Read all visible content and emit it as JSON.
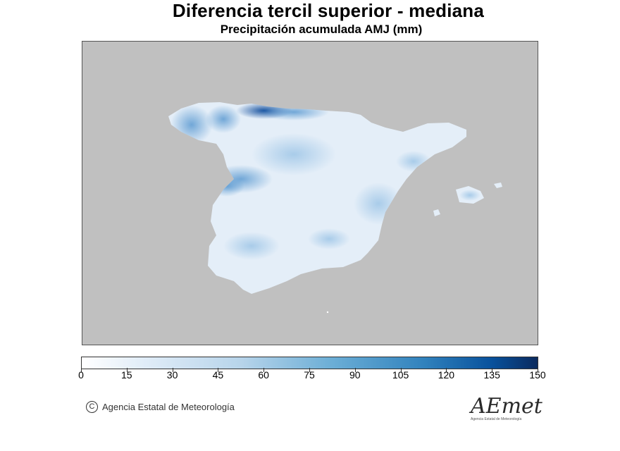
{
  "header": {
    "title": "Diferencia tercil superior - mediana",
    "subtitle": "Precipitación acumulada AMJ (mm)"
  },
  "map": {
    "region": "Península Ibérica y Baleares",
    "background_color": "#c0c0c0",
    "land_base_color": "#e4eef8",
    "highlight_color": "#1f5fa8"
  },
  "colorbar": {
    "min": 0,
    "max": 150,
    "tick_labels": [
      "0",
      "15",
      "30",
      "45",
      "60",
      "75",
      "90",
      "105",
      "120",
      "135",
      "150"
    ],
    "colors": [
      "#ffffff",
      "#0b2a5e"
    ]
  },
  "footer": {
    "copyright_symbol": "C",
    "credit": "Agencia Estatal de Meteorología",
    "logo_text": "AEmet",
    "logo_subtext": "Agencia Estatal de Meteorología"
  }
}
